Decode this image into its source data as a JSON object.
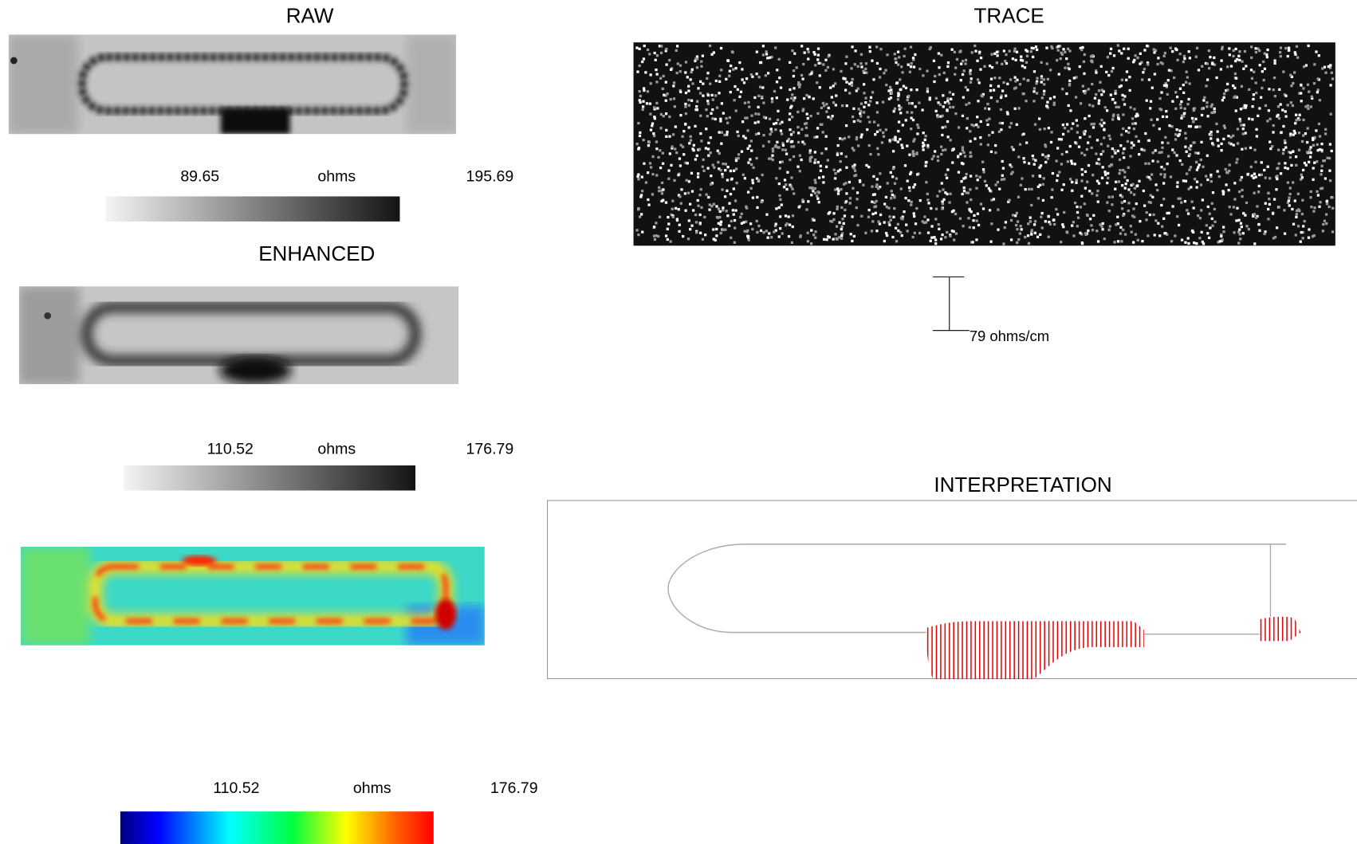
{
  "raw": {
    "title": "RAW",
    "min_label": "89.65",
    "unit": "ohms",
    "max_label": "195.69"
  },
  "enhanced": {
    "title": "ENHANCED",
    "min_label": "110.52",
    "unit": "ohms",
    "max_label": "176.79"
  },
  "color_map": {
    "min_label": "110.52",
    "unit": "ohms",
    "max_label": "176.79"
  },
  "trace": {
    "title": "TRACE",
    "scale_label": "79 ohms/cm"
  },
  "interpretation": {
    "title": "INTERPRETATION"
  }
}
